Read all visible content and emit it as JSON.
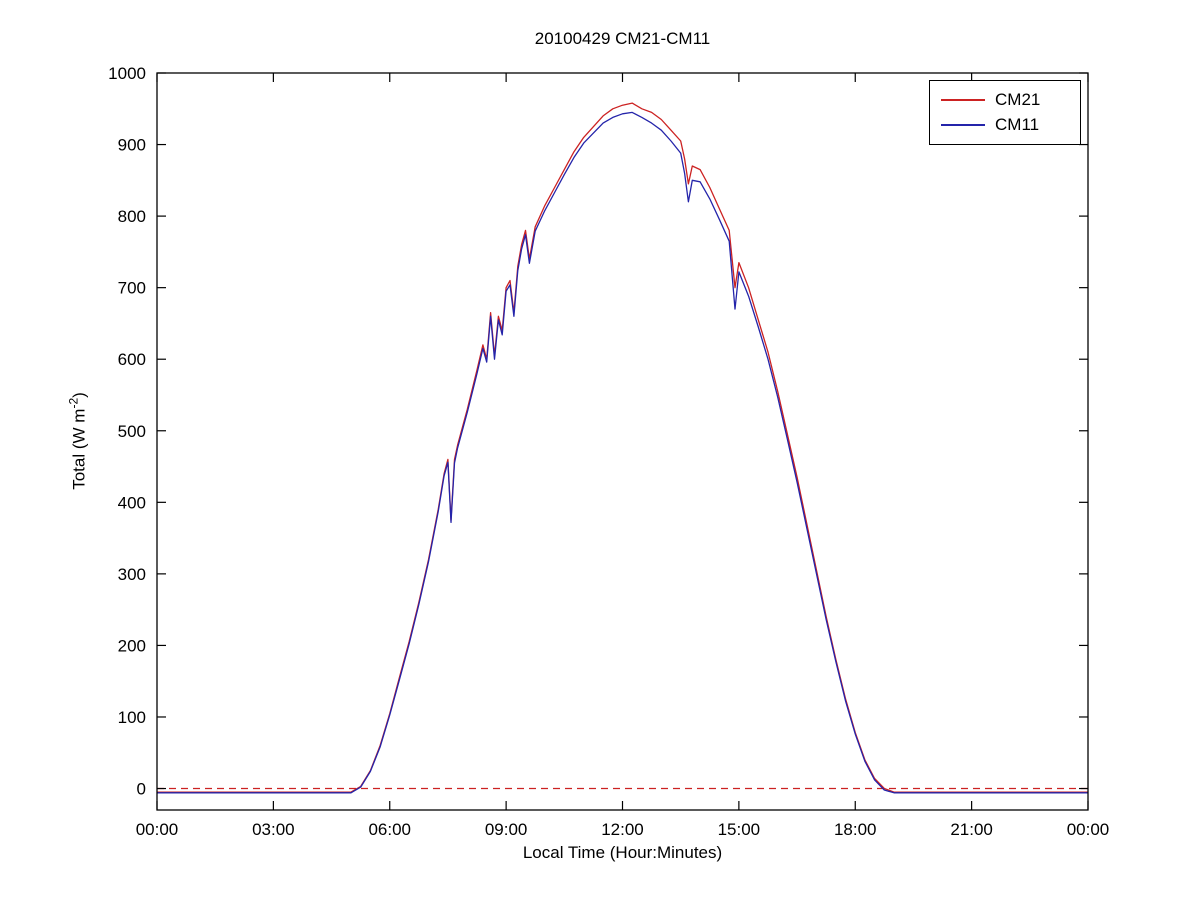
{
  "figure": {
    "title": "20100429 CM21-CM11",
    "xlabel": "Local Time (Hour:Minutes)",
    "ylabel_prefix": "Total (W m",
    "ylabel_exponent": "-2",
    "ylabel_suffix": ")"
  },
  "chart_data": {
    "type": "line",
    "title": "20100429 CM21-CM11",
    "xlabel": "Local Time (Hour:Minutes)",
    "ylabel": "Total (W m^-2)",
    "x_unit": "hours_local_time",
    "xlim": [
      0,
      24
    ],
    "ylim": [
      -30,
      1000
    ],
    "grid": false,
    "legend_position": "top-right",
    "x_ticks": [
      0,
      3,
      6,
      9,
      12,
      15,
      18,
      21,
      24
    ],
    "x_tick_labels": [
      "00:00",
      "03:00",
      "06:00",
      "09:00",
      "12:00",
      "15:00",
      "18:00",
      "21:00",
      "00:00"
    ],
    "y_ticks": [
      0,
      100,
      200,
      300,
      400,
      500,
      600,
      700,
      800,
      900,
      1000
    ],
    "y_tick_labels": [
      "0",
      "100",
      "200",
      "300",
      "400",
      "500",
      "600",
      "700",
      "800",
      "900",
      "1000"
    ],
    "zero_line": {
      "y": 0,
      "style": "dashed",
      "color": "#cc2222"
    },
    "x": [
      0,
      0.5,
      1,
      1.5,
      2,
      2.5,
      3,
      3.5,
      4,
      4.5,
      5,
      5.25,
      5.5,
      5.75,
      6,
      6.25,
      6.5,
      6.75,
      7,
      7.25,
      7.4,
      7.5,
      7.58,
      7.67,
      7.75,
      8,
      8.25,
      8.4,
      8.5,
      8.6,
      8.7,
      8.8,
      8.9,
      9,
      9.1,
      9.2,
      9.3,
      9.4,
      9.5,
      9.6,
      9.75,
      10,
      10.25,
      10.5,
      10.75,
      11,
      11.25,
      11.5,
      11.75,
      12,
      12.25,
      12.5,
      12.75,
      13,
      13.25,
      13.5,
      13.6,
      13.7,
      13.8,
      14,
      14.25,
      14.5,
      14.75,
      14.9,
      15,
      15.25,
      15.5,
      15.75,
      16,
      16.25,
      16.5,
      16.75,
      17,
      17.25,
      17.5,
      17.75,
      18,
      18.25,
      18.5,
      18.75,
      19,
      19.5,
      20,
      20.5,
      21,
      21.5,
      22,
      22.5,
      23,
      23.5,
      24
    ],
    "series": [
      {
        "name": "CM21",
        "color": "#cc2222",
        "values": [
          -5,
          -5,
          -5,
          -5,
          -5,
          -5,
          -5,
          -5,
          -5,
          -5,
          -5,
          3,
          25,
          60,
          105,
          155,
          205,
          260,
          320,
          390,
          440,
          460,
          375,
          460,
          480,
          530,
          585,
          620,
          600,
          665,
          605,
          660,
          640,
          700,
          710,
          665,
          730,
          760,
          780,
          740,
          785,
          815,
          840,
          865,
          890,
          910,
          925,
          940,
          950,
          955,
          958,
          950,
          945,
          935,
          920,
          905,
          880,
          845,
          870,
          865,
          840,
          810,
          780,
          700,
          735,
          700,
          655,
          610,
          555,
          495,
          435,
          370,
          305,
          240,
          180,
          125,
          78,
          40,
          14,
          0,
          -5,
          -5,
          -5,
          -5,
          -5,
          -5,
          -5,
          -5,
          -5,
          -5,
          -5
        ]
      },
      {
        "name": "CM11",
        "color": "#2424aa",
        "values": [
          -6,
          -6,
          -6,
          -6,
          -6,
          -6,
          -6,
          -6,
          -6,
          -6,
          -6,
          2,
          24,
          58,
          103,
          152,
          202,
          257,
          317,
          387,
          437,
          456,
          372,
          455,
          476,
          526,
          580,
          615,
          596,
          660,
          600,
          655,
          634,
          695,
          704,
          660,
          724,
          754,
          774,
          734,
          779,
          808,
          833,
          858,
          882,
          902,
          916,
          930,
          938,
          943,
          945,
          938,
          930,
          920,
          905,
          888,
          860,
          820,
          850,
          848,
          824,
          795,
          765,
          670,
          722,
          688,
          645,
          600,
          547,
          488,
          428,
          364,
          300,
          236,
          177,
          122,
          76,
          38,
          12,
          -2,
          -6,
          -6,
          -6,
          -6,
          -6,
          -6,
          -6,
          -6,
          -6,
          -6,
          -6
        ]
      }
    ]
  }
}
